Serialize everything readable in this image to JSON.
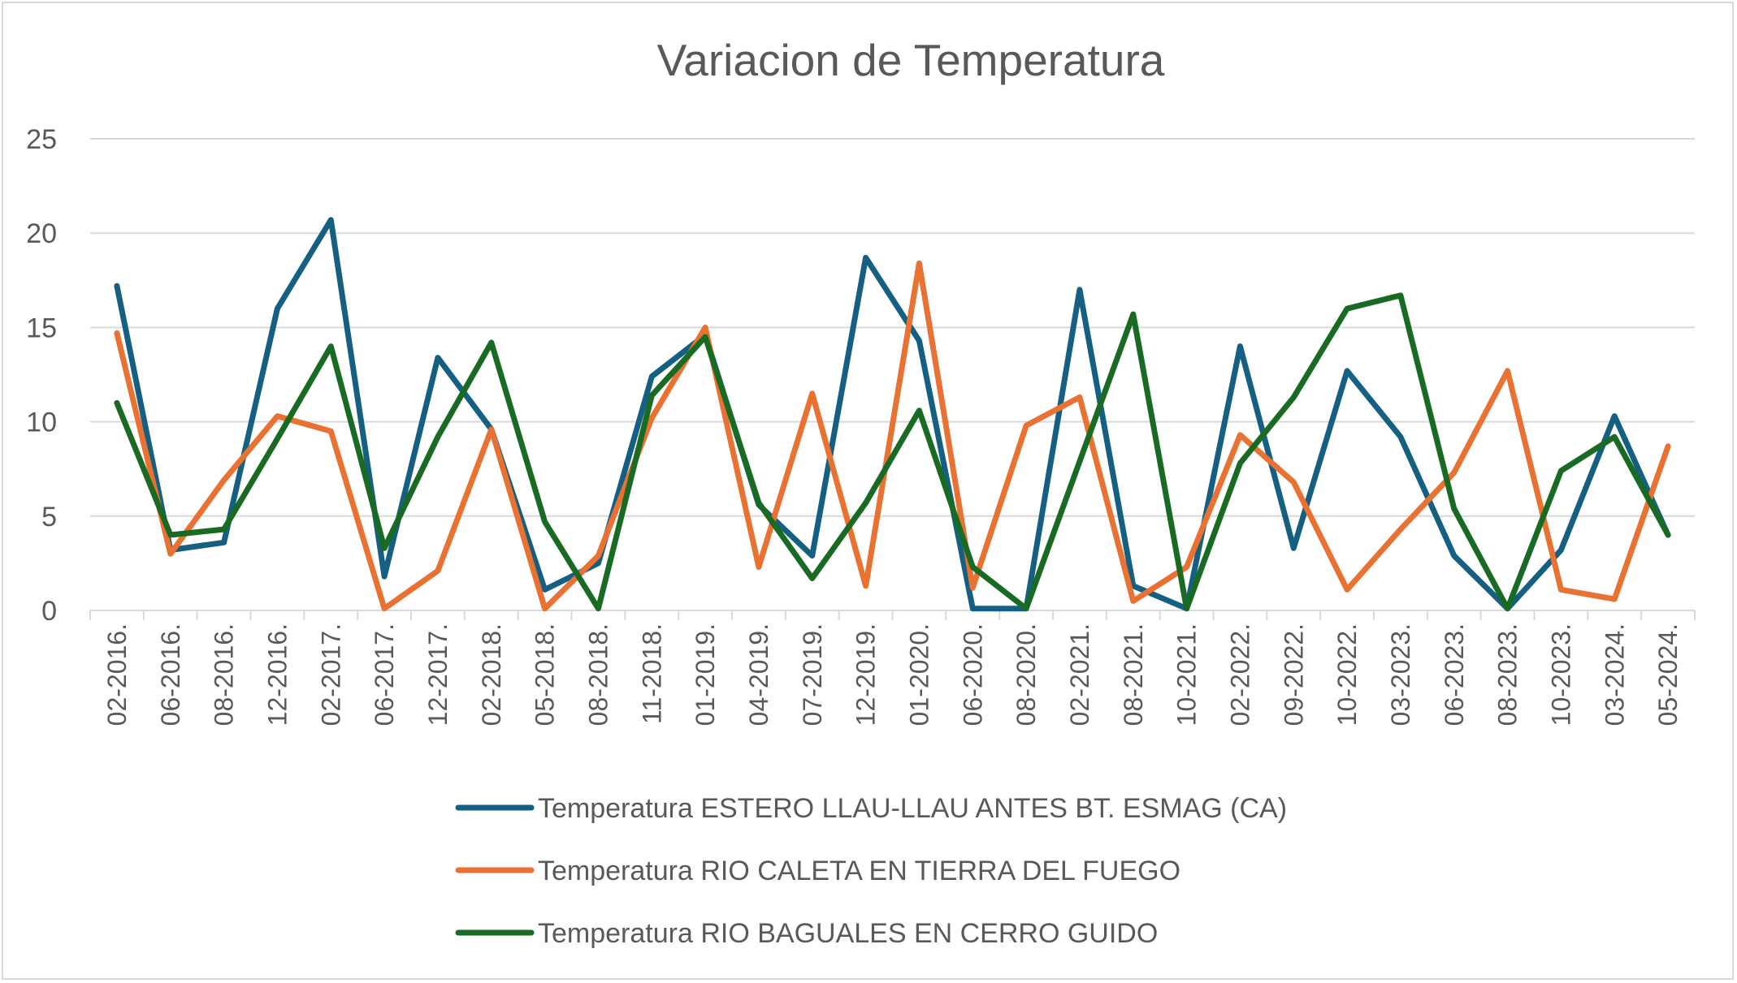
{
  "chart_data": {
    "type": "line",
    "title": "Variacion de Temperatura",
    "xlabel": "",
    "ylabel": "",
    "ylim": [
      0,
      25
    ],
    "yticks": [
      "0",
      "5",
      "10",
      "15",
      "20",
      "25"
    ],
    "grid": true,
    "legend_position": "bottom",
    "categories": [
      "02-2016.",
      "06-2016.",
      "08-2016.",
      "12-2016.",
      "02-2017.",
      "06-2017.",
      "12-2017.",
      "02-2018.",
      "05-2018.",
      "08-2018.",
      "11-2018.",
      "01-2019.",
      "04-2019.",
      "07-2019.",
      "12-2019.",
      "01-2020.",
      "06-2020.",
      "08-2020.",
      "02-2021.",
      "08-2021.",
      "10-2021.",
      "02-2022.",
      "09-2022.",
      "10-2022.",
      "03-2023.",
      "06-2023.",
      "08-2023.",
      "10-2023.",
      "03-2024.",
      "05-2024."
    ],
    "series": [
      {
        "name": "Temperatura ESTERO LLAU-LLAU ANTES BT. ESMAG (CA)",
        "color": "#156082",
        "values": [
          17.2,
          3.2,
          3.6,
          16.0,
          20.7,
          1.8,
          13.4,
          9.6,
          1.1,
          2.5,
          12.4,
          14.6,
          5.6,
          2.9,
          18.7,
          14.3,
          0.1,
          0.1,
          17.0,
          1.3,
          0.1,
          14.0,
          3.3,
          12.7,
          9.2,
          2.9,
          0.1,
          3.2,
          10.3,
          4.0
        ]
      },
      {
        "name": "Temperatura RIO CALETA EN TIERRA DEL FUEGO",
        "color": "#E97132",
        "values": [
          14.7,
          3.0,
          6.9,
          10.3,
          9.5,
          0.1,
          2.1,
          9.6,
          0.1,
          2.9,
          10.2,
          15.0,
          2.3,
          11.5,
          1.3,
          18.4,
          1.2,
          9.8,
          11.3,
          0.5,
          2.3,
          9.3,
          6.8,
          1.1,
          4.3,
          7.3,
          12.7,
          1.1,
          0.6,
          8.7
        ]
      },
      {
        "name": "Temperatura RIO BAGUALES EN CERRO GUIDO",
        "color": "#196B24",
        "values": [
          11.0,
          4.0,
          4.3,
          9.1,
          14.0,
          3.3,
          9.2,
          14.2,
          4.7,
          0.1,
          11.4,
          14.5,
          5.7,
          1.7,
          5.7,
          10.6,
          2.3,
          0.1,
          7.9,
          15.7,
          0.1,
          7.8,
          11.3,
          16.0,
          16.7,
          5.4,
          0.1,
          7.4,
          9.2,
          4.0
        ]
      }
    ]
  }
}
